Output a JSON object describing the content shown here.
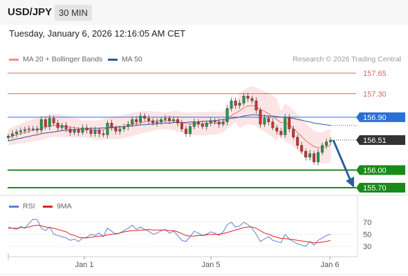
{
  "header": {
    "symbol": "USD/JPY",
    "timeframe": "30 MIN",
    "datetime": "Tuesday, January 6, 2026 12:16:05 AM CET"
  },
  "legend": {
    "ma20": {
      "label": "MA 20 + Bollinger Bands",
      "color": "#f08c8c"
    },
    "ma50": {
      "label": "MA 50",
      "color": "#2f5597"
    }
  },
  "credit": "Research © 2026 Trading Central",
  "colors": {
    "resistance": "#e06060",
    "pivot": "#2b6fd6",
    "support": "#1a8a1a",
    "current": "#333333",
    "arrow": "#2a5ea0",
    "bollinger_fill": "#fde0e0",
    "rsi": "#5b7fd4",
    "rsi_ma": "#e02020"
  },
  "chart_data": [
    {
      "type": "candlestick",
      "title": "",
      "ylim": [
        155.65,
        157.72
      ],
      "x_ticks": [
        "Jan 1",
        "Jan 5",
        "Jan 6"
      ],
      "levels": [
        {
          "name": "resistance-2",
          "value": 157.65,
          "label": "157.65",
          "kind": "resistance"
        },
        {
          "name": "resistance-1",
          "value": 157.3,
          "label": "157.30",
          "kind": "resistance"
        },
        {
          "name": "pivot",
          "value": 156.9,
          "label": "156.90",
          "kind": "pivot"
        },
        {
          "name": "current-price",
          "value": 156.51,
          "label": "156.51",
          "kind": "current"
        },
        {
          "name": "support-1",
          "value": 156.0,
          "label": "156.00",
          "kind": "support"
        },
        {
          "name": "support-2",
          "value": 155.7,
          "label": "155.70",
          "kind": "support"
        }
      ],
      "close_series": [
        156.58,
        156.62,
        156.65,
        156.67,
        156.69,
        156.7,
        156.7,
        156.68,
        156.86,
        156.74,
        156.88,
        156.8,
        156.72,
        156.76,
        156.7,
        156.64,
        156.68,
        156.64,
        156.72,
        156.68,
        156.62,
        156.68,
        156.62,
        156.6,
        156.8,
        156.72,
        156.66,
        156.7,
        156.74,
        156.78,
        156.86,
        156.82,
        156.92,
        156.88,
        156.84,
        156.8,
        156.82,
        156.86,
        156.88,
        156.84,
        156.86,
        156.8,
        156.7,
        156.62,
        156.74,
        156.82,
        156.78,
        156.74,
        156.8,
        156.84,
        156.82,
        156.78,
        156.82,
        157.05,
        157.18,
        157.1,
        157.14,
        157.26,
        157.22,
        157.18,
        157.02,
        156.78,
        156.88,
        156.82,
        156.72,
        156.66,
        156.6,
        156.9,
        156.7,
        156.56,
        156.42,
        156.32,
        156.22,
        156.28,
        156.14,
        156.3,
        156.42,
        156.48,
        156.51
      ],
      "ma20_series": [
        156.56,
        156.58,
        156.6,
        156.62,
        156.64,
        156.66,
        156.68,
        156.69,
        156.71,
        156.73,
        156.75,
        156.76,
        156.76,
        156.75,
        156.74,
        156.73,
        156.72,
        156.71,
        156.7,
        156.7,
        156.69,
        156.68,
        156.68,
        156.69,
        156.71,
        156.72,
        156.72,
        156.73,
        156.74,
        156.76,
        156.78,
        156.79,
        156.81,
        156.82,
        156.83,
        156.83,
        156.84,
        156.84,
        156.84,
        156.84,
        156.84,
        156.83,
        156.81,
        156.79,
        156.79,
        156.79,
        156.79,
        156.79,
        156.79,
        156.8,
        156.8,
        156.8,
        156.82,
        156.87,
        156.93,
        156.97,
        157.01,
        157.06,
        157.09,
        157.1,
        157.08,
        157.03,
        157.0,
        156.96,
        156.91,
        156.86,
        156.81,
        156.81,
        156.77,
        156.71,
        156.64,
        156.57,
        156.5,
        156.45,
        156.4,
        156.38,
        156.38,
        156.4,
        156.42
      ],
      "ma50_series": [
        156.5,
        156.51,
        156.53,
        156.54,
        156.56,
        156.57,
        156.59,
        156.6,
        156.62,
        156.63,
        156.64,
        156.65,
        156.66,
        156.67,
        156.68,
        156.68,
        156.69,
        156.69,
        156.7,
        156.7,
        156.71,
        156.71,
        156.71,
        156.72,
        156.72,
        156.73,
        156.73,
        156.74,
        156.74,
        156.75,
        156.75,
        156.76,
        156.77,
        156.77,
        156.78,
        156.78,
        156.79,
        156.8,
        156.8,
        156.8,
        156.81,
        156.81,
        156.81,
        156.81,
        156.82,
        156.82,
        156.82,
        156.83,
        156.83,
        156.84,
        156.84,
        156.85,
        156.86,
        156.87,
        156.88,
        156.89,
        156.9,
        156.92,
        156.93,
        156.94,
        156.94,
        156.93,
        156.93,
        156.92,
        156.92,
        156.91,
        156.9,
        156.9,
        156.89,
        156.88,
        156.86,
        156.85,
        156.83,
        156.82,
        156.8,
        156.79,
        156.78,
        156.77,
        156.76
      ],
      "forecast": {
        "from": 156.51,
        "to": 155.7
      }
    },
    {
      "type": "line",
      "title": "",
      "ylim": [
        20,
        80
      ],
      "y_ticks": [
        70,
        50,
        30
      ],
      "legend": [
        {
          "name": "RSI",
          "color": "#5b7fd4"
        },
        {
          "name": "9MA",
          "color": "#e02020"
        }
      ],
      "rsi_series": [
        62,
        60,
        58,
        63,
        60,
        68,
        75,
        74,
        60,
        56,
        62,
        50,
        48,
        46,
        44,
        40,
        42,
        38,
        44,
        45,
        50,
        48,
        52,
        46,
        60,
        55,
        50,
        52,
        56,
        60,
        65,
        58,
        62,
        58,
        55,
        50,
        52,
        56,
        58,
        52,
        55,
        48,
        40,
        38,
        46,
        55,
        52,
        48,
        50,
        54,
        52,
        48,
        54,
        66,
        70,
        62,
        64,
        70,
        66,
        60,
        50,
        38,
        42,
        46,
        40,
        38,
        36,
        50,
        42,
        38,
        34,
        32,
        30,
        38,
        32,
        40,
        44,
        48,
        50
      ],
      "rsi_ma_series": [
        60,
        60,
        60,
        61,
        61,
        62,
        64,
        65,
        64,
        62,
        61,
        60,
        58,
        56,
        54,
        50,
        48,
        45,
        44,
        44,
        45,
        46,
        47,
        47,
        49,
        50,
        51,
        52,
        54,
        55,
        56,
        56,
        57,
        57,
        58,
        57,
        57,
        57,
        57,
        56,
        56,
        54,
        51,
        48,
        47,
        47,
        48,
        48,
        49,
        50,
        50,
        50,
        51,
        53,
        55,
        57,
        59,
        61,
        62,
        62,
        60,
        56,
        52,
        50,
        47,
        45,
        43,
        43,
        42,
        41,
        40,
        39,
        38,
        37,
        36,
        36,
        37,
        38,
        40
      ]
    }
  ]
}
